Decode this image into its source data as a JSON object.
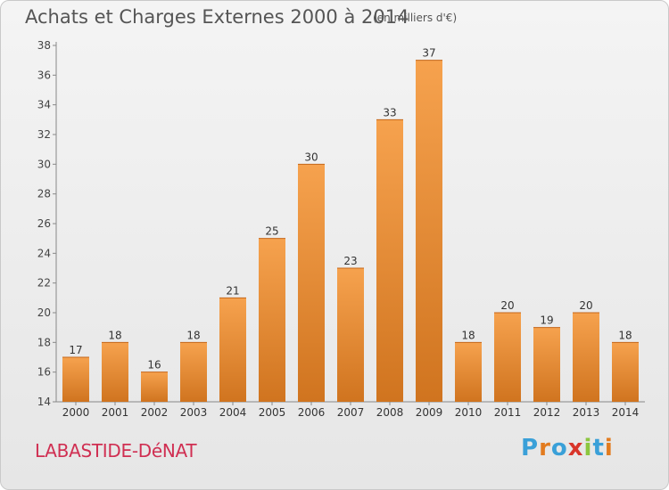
{
  "header": {
    "title": "Achats et Charges Externes 2000 à 2014",
    "unit": "(en milliers d'€)"
  },
  "footer": {
    "commune": "LABASTIDE-DéNAT",
    "logo_text": "Proxiti"
  },
  "colors": {
    "bar_light": "#f6a24e",
    "bar_dark": "#d0741f",
    "commune_text": "#d02f52",
    "logo_letters": [
      "#3aa0d8",
      "#e27b1f",
      "#3aa0d8",
      "#d8352a",
      "#8cc63f",
      "#3aa0d8",
      "#e27b1f"
    ]
  },
  "chart_data": {
    "type": "bar",
    "title": "Achats et Charges Externes 2000 à 2014",
    "ylabel": "",
    "xlabel": "",
    "categories": [
      "2000",
      "2001",
      "2002",
      "2003",
      "2004",
      "2005",
      "2006",
      "2007",
      "2008",
      "2009",
      "2010",
      "2011",
      "2012",
      "2013",
      "2014"
    ],
    "values": [
      17,
      18,
      16,
      18,
      21,
      25,
      30,
      23,
      33,
      37,
      18,
      20,
      19,
      20,
      18
    ],
    "ylim": [
      14,
      38
    ],
    "yticks": [
      14,
      16,
      18,
      20,
      22,
      24,
      26,
      28,
      30,
      32,
      34,
      36,
      38
    ],
    "grid": false,
    "legend": "none"
  }
}
